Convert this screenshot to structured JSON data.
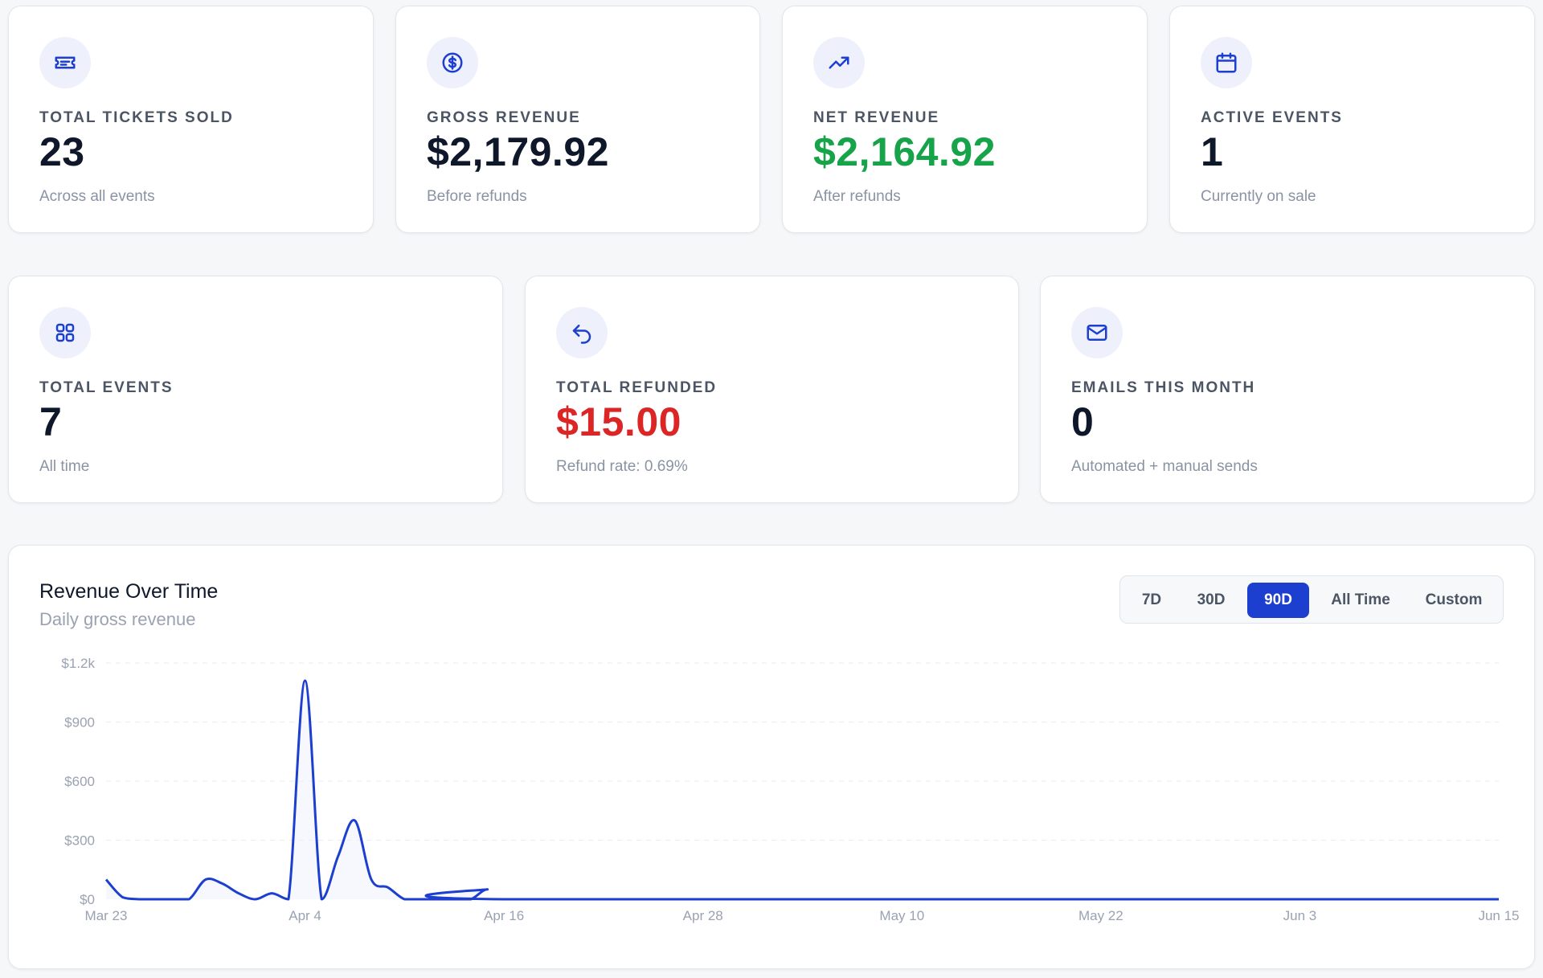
{
  "stats_row1": [
    {
      "icon": "ticket-icon",
      "label": "TOTAL TICKETS SOLD",
      "value": "23",
      "sub": "Across all events",
      "value_color": "#0f172a"
    },
    {
      "icon": "dollar-circle-icon",
      "label": "GROSS REVENUE",
      "value": "$2,179.92",
      "sub": "Before refunds",
      "value_color": "#0f172a"
    },
    {
      "icon": "trending-up-icon",
      "label": "NET REVENUE",
      "value": "$2,164.92",
      "sub": "After refunds",
      "value_color": "#16a34a"
    },
    {
      "icon": "calendar-icon",
      "label": "ACTIVE EVENTS",
      "value": "1",
      "sub": "Currently on sale",
      "value_color": "#0f172a"
    }
  ],
  "stats_row2": [
    {
      "icon": "grid-icon",
      "label": "TOTAL EVENTS",
      "value": "7",
      "sub": "All time",
      "value_color": "#0f172a"
    },
    {
      "icon": "undo-icon",
      "label": "TOTAL REFUNDED",
      "value": "$15.00",
      "sub": "Refund rate: 0.69%",
      "value_color": "#dc2626"
    },
    {
      "icon": "mail-icon",
      "label": "EMAILS THIS MONTH",
      "value": "0",
      "sub": "Automated + manual sends",
      "value_color": "#0f172a"
    }
  ],
  "revenue_chart": {
    "title": "Revenue Over Time",
    "subtitle": "Daily gross revenue",
    "ranges": [
      "7D",
      "30D",
      "90D",
      "All Time",
      "Custom"
    ],
    "active_range": "90D"
  },
  "colors": {
    "accent": "#1d3fcf",
    "icon_bg": "#eef1fb",
    "positive": "#16a34a",
    "negative": "#dc2626"
  },
  "chart_data": {
    "type": "line",
    "title": "Revenue Over Time",
    "subtitle": "Daily gross revenue",
    "xlabel": "",
    "ylabel": "",
    "x_ticks": [
      "Mar 23",
      "Apr 4",
      "Apr 16",
      "Apr 28",
      "May 10",
      "May 22",
      "Jun 3",
      "Jun 15"
    ],
    "y_ticks": [
      "$0",
      "$300",
      "$600",
      "$900",
      "$1.2k"
    ],
    "ylim": [
      0,
      1200
    ],
    "grid": true,
    "x_start": "Mar 23",
    "x_end": "Jun 15",
    "points": [
      [
        "Mar 23",
        100
      ],
      [
        "Mar 24",
        10
      ],
      [
        "Mar 25",
        0
      ],
      [
        "Mar 26",
        0
      ],
      [
        "Mar 27",
        0
      ],
      [
        "Mar 28",
        0
      ],
      [
        "Mar 29",
        100
      ],
      [
        "Mar 30",
        80
      ],
      [
        "Mar 31",
        30
      ],
      [
        "Apr 1",
        0
      ],
      [
        "Apr 2",
        30
      ],
      [
        "Apr 3",
        0
      ],
      [
        "Apr 4",
        1110
      ],
      [
        "Apr 5",
        0
      ],
      [
        "Apr 6",
        220
      ],
      [
        "Apr 7",
        400
      ],
      [
        "Apr 8",
        100
      ],
      [
        "Apr 9",
        60
      ],
      [
        "Apr 10",
        0
      ],
      [
        "Apr 11",
        0
      ],
      [
        "Apr 12",
        0
      ],
      [
        "Apr 13",
        0
      ],
      [
        "Apr 14",
        0
      ],
      [
        "Apr 15",
        50
      ],
      [
        "Apr 16",
        0
      ],
      [
        "Jun 15",
        0
      ]
    ]
  }
}
